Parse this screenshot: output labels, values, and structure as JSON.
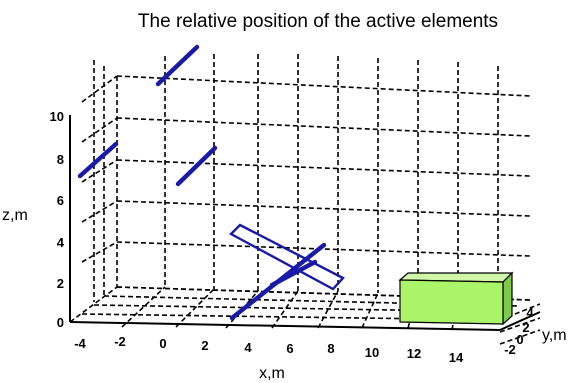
{
  "chart_data": {
    "type": "3d-wireframe",
    "title": "The relative position of the active elements",
    "xlabel": "x,m",
    "ylabel": "y,m",
    "zlabel": "z,m",
    "x_ticks": [
      "-4",
      "-2",
      "0",
      "2",
      "4",
      "6",
      "8",
      "10",
      "12",
      "14"
    ],
    "y_ticks": [
      "4",
      "2",
      "0",
      "-2"
    ],
    "z_ticks": [
      "0",
      "2",
      "4",
      "6",
      "8",
      "10"
    ],
    "xlim": [
      -4,
      15
    ],
    "ylim": [
      -3,
      5
    ],
    "zlim": [
      0,
      11
    ],
    "grid": true,
    "colors": {
      "elements": "#1a1aa8",
      "box": "#aaf46a",
      "grid": "#000000"
    }
  }
}
